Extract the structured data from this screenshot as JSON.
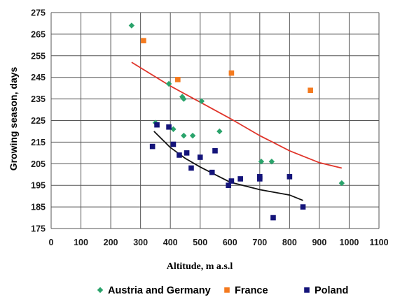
{
  "chart_data": {
    "type": "scatter",
    "title": "",
    "xlabel": "Altitude, m a.s.l",
    "ylabel": "Growing season, days",
    "xlim": [
      0,
      1100
    ],
    "ylim": [
      175,
      275
    ],
    "x_ticks": [
      0,
      100,
      200,
      300,
      400,
      500,
      600,
      700,
      800,
      900,
      1000,
      1100
    ],
    "y_ticks": [
      175,
      185,
      195,
      205,
      215,
      225,
      235,
      245,
      255,
      265,
      275
    ],
    "grid": true,
    "legend_position": "bottom",
    "series": [
      {
        "name": "Austria and Germany",
        "marker": "diamond",
        "color": "#2aa36b",
        "points": [
          [
            270,
            269
          ],
          [
            350,
            224
          ],
          [
            395,
            242
          ],
          [
            410,
            221
          ],
          [
            440,
            236
          ],
          [
            445,
            235
          ],
          [
            445,
            218
          ],
          [
            475,
            218
          ],
          [
            505,
            234
          ],
          [
            565,
            220
          ],
          [
            705,
            206
          ],
          [
            740,
            206
          ],
          [
            975,
            196
          ]
        ]
      },
      {
        "name": "France",
        "marker": "square",
        "color": "#f47a1f",
        "points": [
          [
            310,
            262
          ],
          [
            425,
            244
          ],
          [
            605,
            247
          ],
          [
            870,
            239
          ]
        ]
      },
      {
        "name": "Poland",
        "marker": "square",
        "color": "#14147a",
        "points": [
          [
            340,
            213
          ],
          [
            355,
            223
          ],
          [
            395,
            222
          ],
          [
            410,
            214
          ],
          [
            430,
            209
          ],
          [
            455,
            210
          ],
          [
            470,
            203
          ],
          [
            500,
            208
          ],
          [
            540,
            201
          ],
          [
            550,
            211
          ],
          [
            595,
            195
          ],
          [
            605,
            197
          ],
          [
            635,
            198
          ],
          [
            700,
            199
          ],
          [
            700,
            198
          ],
          [
            745,
            180
          ],
          [
            800,
            199
          ],
          [
            845,
            185
          ]
        ]
      }
    ],
    "trendlines": [
      {
        "color": "#e0342a",
        "points": [
          [
            270,
            252
          ],
          [
            400,
            241
          ],
          [
            500,
            233.5
          ],
          [
            600,
            226
          ],
          [
            700,
            218
          ],
          [
            800,
            211
          ],
          [
            900,
            205.5
          ],
          [
            975,
            203
          ]
        ]
      },
      {
        "color": "#111111",
        "points": [
          [
            345,
            220
          ],
          [
            400,
            212.5
          ],
          [
            450,
            207.5
          ],
          [
            500,
            203.5
          ],
          [
            550,
            200
          ],
          [
            600,
            196.5
          ],
          [
            700,
            193
          ],
          [
            800,
            190.5
          ],
          [
            845,
            188
          ]
        ]
      }
    ]
  }
}
